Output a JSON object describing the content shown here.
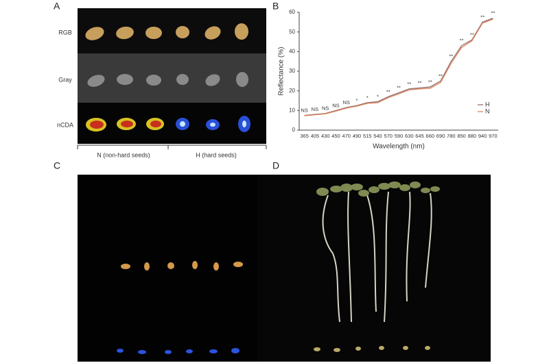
{
  "panel_labels": [
    "A",
    "B",
    "C",
    "D"
  ],
  "panel_a": {
    "row_labels": [
      "RGB",
      "Gray",
      "nCDA"
    ],
    "group_labels": [
      "N (non-hard seeds)",
      "H (hard seeds)"
    ]
  },
  "chart_data": {
    "type": "line",
    "xlabel": "Wavelength (nm)",
    "ylabel": "Reflectance (%)",
    "categories": [
      "365",
      "405",
      "430",
      "450",
      "470",
      "490",
      "515",
      "540",
      "570",
      "590",
      "630",
      "645",
      "660",
      "690",
      "780",
      "850",
      "880",
      "940",
      "970"
    ],
    "series": [
      {
        "name": "H",
        "color": "#8c6e6e",
        "values": [
          7.5,
          8,
          8.5,
          10,
          11.5,
          12.5,
          14,
          14.5,
          17,
          19,
          21,
          21.5,
          22,
          25,
          35,
          43,
          46,
          55,
          57
        ]
      },
      {
        "name": "N",
        "color": "#e2825a",
        "values": [
          7.3,
          7.8,
          8.3,
          9.7,
          11.2,
          12.2,
          13.6,
          14,
          16.5,
          18.5,
          20.5,
          21,
          21.3,
          24.3,
          34,
          42,
          45.5,
          54.5,
          56.5
        ]
      }
    ],
    "annotations": [
      "NS",
      "NS",
      "NS",
      "NS",
      "NS",
      "*",
      "*",
      "*",
      "**",
      "**",
      "**",
      "**",
      "**",
      "**",
      "**",
      "**",
      "**",
      "**",
      "**"
    ],
    "ylim": [
      0,
      60
    ],
    "yticks": [
      0,
      10,
      20,
      30,
      40,
      50,
      60
    ],
    "legend": "right"
  }
}
